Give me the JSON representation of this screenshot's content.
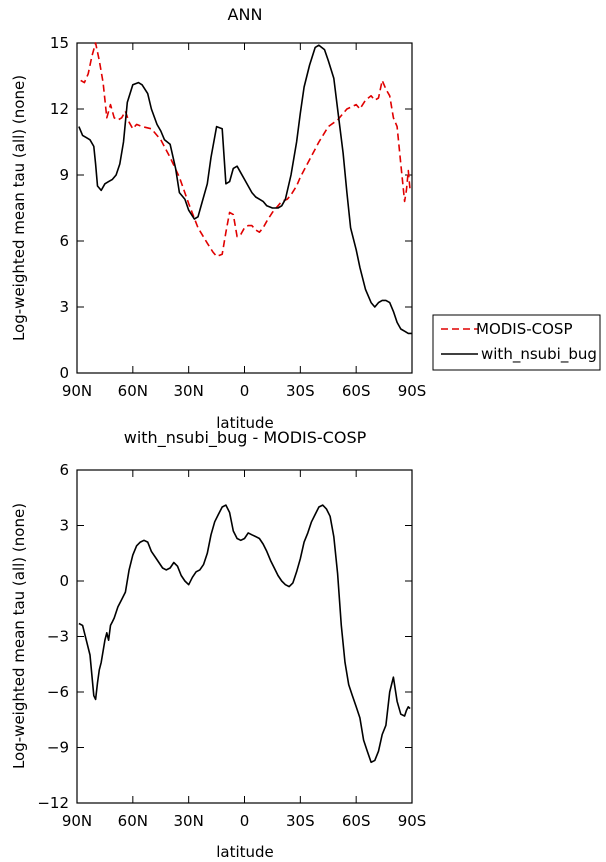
{
  "chart_data": [
    {
      "type": "line",
      "title": "ANN",
      "xlabel": "latitude",
      "ylabel": "Log-weighted mean tau (all) (none)",
      "xlim": [
        90,
        -90
      ],
      "ylim": [
        0,
        15
      ],
      "xticks": [
        90,
        60,
        30,
        0,
        -30,
        -60,
        -90
      ],
      "xticklabels": [
        "90N",
        "60N",
        "30N",
        "0",
        "30S",
        "60S",
        "90S"
      ],
      "yticks": [
        0,
        3,
        6,
        9,
        12,
        15
      ],
      "yticklabels": [
        "0",
        "3",
        "6",
        "9",
        "12",
        "15"
      ],
      "legend": {
        "position": "right",
        "entries": [
          "MODIS-COSP",
          "with_nsubi_bug"
        ]
      },
      "series": [
        {
          "name": "MODIS-COSP",
          "color": "#e00000",
          "dash": "dashed",
          "x": [
            88,
            86,
            84,
            82,
            80,
            78,
            76,
            74,
            72,
            70,
            68,
            66,
            64,
            62,
            60,
            58,
            55,
            50,
            45,
            40,
            35,
            30,
            25,
            20,
            17,
            15,
            12,
            10,
            8,
            6,
            4,
            2,
            0,
            -2,
            -4,
            -6,
            -8,
            -10,
            -12,
            -15,
            -18,
            -20,
            -23,
            -25,
            -28,
            -30,
            -35,
            -40,
            -45,
            -50,
            -55,
            -60,
            -62,
            -65,
            -68,
            -70,
            -72,
            -74,
            -76,
            -78,
            -80,
            -82,
            -84,
            -86,
            -87,
            -88,
            -89
          ],
          "y": [
            13.3,
            13.2,
            13.6,
            14.4,
            15.0,
            14.2,
            13.2,
            11.6,
            12.2,
            11.6,
            11.5,
            11.6,
            11.9,
            11.4,
            11.1,
            11.3,
            11.2,
            11.1,
            10.6,
            9.8,
            8.9,
            7.7,
            6.6,
            5.9,
            5.5,
            5.3,
            5.4,
            6.4,
            7.3,
            7.2,
            6.2,
            6.3,
            6.6,
            6.7,
            6.7,
            6.5,
            6.4,
            6.6,
            6.9,
            7.3,
            7.6,
            7.8,
            7.9,
            8.1,
            8.5,
            8.9,
            9.7,
            10.5,
            11.2,
            11.5,
            12.0,
            12.2,
            12.0,
            12.4,
            12.6,
            12.4,
            12.5,
            13.3,
            12.9,
            12.6,
            11.6,
            11.2,
            9.5,
            7.8,
            8.3,
            9.2,
            8.3
          ]
        },
        {
          "name": "with_nsubi_bug",
          "color": "#000000",
          "dash": "solid",
          "x": [
            89,
            87,
            85,
            83,
            81,
            80,
            79,
            77,
            75,
            73,
            71,
            69,
            67,
            65,
            63,
            60,
            57,
            55,
            52,
            50,
            47,
            45,
            43,
            40,
            37,
            35,
            32,
            30,
            27,
            25,
            23,
            20,
            18,
            15,
            12,
            10,
            8,
            6,
            4,
            2,
            0,
            -2,
            -4,
            -6,
            -8,
            -10,
            -12,
            -15,
            -18,
            -20,
            -22,
            -25,
            -28,
            -30,
            -32,
            -35,
            -38,
            -40,
            -43,
            -45,
            -48,
            -50,
            -53,
            -55,
            -57,
            -60,
            -62,
            -65,
            -68,
            -70,
            -72,
            -74,
            -76,
            -78,
            -80,
            -82,
            -84,
            -86,
            -88,
            -90
          ],
          "y": [
            11.2,
            10.8,
            10.7,
            10.6,
            10.3,
            9.5,
            8.5,
            8.3,
            8.6,
            8.7,
            8.8,
            9.0,
            9.5,
            10.5,
            12.3,
            13.1,
            13.2,
            13.1,
            12.7,
            12.0,
            11.3,
            11.0,
            10.6,
            10.4,
            9.3,
            8.2,
            7.9,
            7.4,
            7.0,
            7.1,
            7.7,
            8.6,
            9.8,
            11.2,
            11.1,
            8.6,
            8.7,
            9.3,
            9.4,
            9.1,
            8.8,
            8.5,
            8.2,
            8.0,
            7.9,
            7.8,
            7.6,
            7.5,
            7.5,
            7.6,
            7.9,
            9.0,
            10.5,
            11.8,
            13.0,
            14.0,
            14.8,
            14.9,
            14.7,
            14.2,
            13.4,
            12.0,
            10.0,
            8.2,
            6.6,
            5.6,
            4.8,
            3.8,
            3.2,
            3.0,
            3.2,
            3.3,
            3.3,
            3.2,
            2.8,
            2.3,
            2.0,
            1.9,
            1.8,
            1.8
          ]
        }
      ]
    },
    {
      "type": "line",
      "title": "with_nsubi_bug - MODIS-COSP",
      "xlabel": "latitude",
      "ylabel": "Log-weighted mean tau (all) (none)",
      "xlim": [
        90,
        -90
      ],
      "ylim": [
        -12,
        6
      ],
      "xticks": [
        90,
        60,
        30,
        0,
        -30,
        -60,
        -90
      ],
      "xticklabels": [
        "90N",
        "60N",
        "30N",
        "0",
        "30S",
        "60S",
        "90S"
      ],
      "yticks": [
        -12,
        -9,
        -6,
        -3,
        0,
        3,
        6
      ],
      "yticklabels": [
        "-12",
        "-9",
        "-6",
        "-3",
        "0",
        "3",
        "6"
      ],
      "series": [
        {
          "name": "with_nsubi_bug - MODIS-COSP",
          "color": "#000000",
          "dash": "solid",
          "x": [
            89,
            87,
            85,
            83,
            81,
            80,
            79,
            78,
            77,
            75,
            74,
            73,
            72,
            71,
            70,
            68,
            66,
            64,
            62,
            60,
            58,
            56,
            54,
            52,
            50,
            48,
            46,
            44,
            42,
            40,
            38,
            36,
            34,
            32,
            30,
            28,
            26,
            24,
            22,
            20,
            18,
            16,
            14,
            12,
            10,
            8,
            6,
            4,
            2,
            0,
            -2,
            -4,
            -6,
            -8,
            -10,
            -12,
            -14,
            -16,
            -18,
            -20,
            -22,
            -24,
            -26,
            -28,
            -30,
            -32,
            -34,
            -36,
            -38,
            -40,
            -42,
            -44,
            -46,
            -48,
            -50,
            -52,
            -54,
            -56,
            -58,
            -60,
            -62,
            -64,
            -66,
            -68,
            -70,
            -72,
            -74,
            -76,
            -78,
            -80,
            -82,
            -84,
            -86,
            -87,
            -88,
            -89
          ],
          "y": [
            -2.3,
            -2.4,
            -3.2,
            -4.0,
            -6.2,
            -6.4,
            -5.5,
            -4.8,
            -4.4,
            -3.2,
            -2.8,
            -3.2,
            -2.4,
            -2.2,
            -2.0,
            -1.4,
            -1.0,
            -0.6,
            0.6,
            1.4,
            1.9,
            2.1,
            2.2,
            2.1,
            1.6,
            1.3,
            1.0,
            0.7,
            0.6,
            0.7,
            1.0,
            0.8,
            0.3,
            0.0,
            -0.2,
            0.2,
            0.5,
            0.6,
            0.9,
            1.5,
            2.5,
            3.2,
            3.6,
            4.0,
            4.1,
            3.7,
            2.7,
            2.3,
            2.2,
            2.3,
            2.6,
            2.5,
            2.4,
            2.3,
            2.0,
            1.6,
            1.1,
            0.7,
            0.3,
            0.0,
            -0.2,
            -0.3,
            -0.1,
            0.5,
            1.2,
            2.1,
            2.6,
            3.2,
            3.6,
            4.0,
            4.1,
            3.9,
            3.5,
            2.4,
            0.4,
            -2.4,
            -4.4,
            -5.6,
            -6.2,
            -6.8,
            -7.4,
            -8.6,
            -9.2,
            -9.8,
            -9.7,
            -9.2,
            -8.3,
            -7.8,
            -6.0,
            -5.2,
            -6.5,
            -7.2,
            -7.3,
            -7.0,
            -6.8,
            -6.9
          ]
        }
      ]
    }
  ]
}
